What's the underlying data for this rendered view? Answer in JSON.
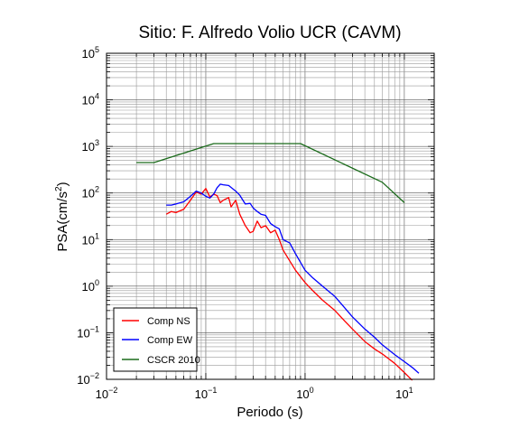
{
  "chart_data": {
    "type": "line",
    "title": "Sitio: F. Alfredo Volio UCR (CAVM)",
    "xlabel": "Periodo (s)",
    "ylabel_base": "PSA(cm/s",
    "ylabel_exp": "2",
    "ylabel_end": ")",
    "x_scale": "log",
    "y_scale": "log",
    "xlim": [
      0.01,
      20
    ],
    "ylim": [
      0.01,
      100000
    ],
    "grid": true,
    "legend_position": "bottom-left",
    "x_ticks": [
      {
        "value": 0.01,
        "base": "10",
        "exp": "−2"
      },
      {
        "value": 0.1,
        "base": "10",
        "exp": "−1"
      },
      {
        "value": 1,
        "base": "10",
        "exp": "0"
      },
      {
        "value": 10,
        "base": "10",
        "exp": "1"
      }
    ],
    "y_ticks": [
      {
        "value": 0.01,
        "base": "10",
        "exp": "−2"
      },
      {
        "value": 0.1,
        "base": "10",
        "exp": "−1"
      },
      {
        "value": 1,
        "base": "10",
        "exp": "0"
      },
      {
        "value": 10,
        "base": "10",
        "exp": "1"
      },
      {
        "value": 100,
        "base": "10",
        "exp": "2"
      },
      {
        "value": 1000,
        "base": "10",
        "exp": "3"
      },
      {
        "value": 10000,
        "base": "10",
        "exp": "4"
      },
      {
        "value": 100000,
        "base": "10",
        "exp": "5"
      }
    ],
    "series": [
      {
        "name": "Comp NS",
        "color": "#ff0000",
        "x": [
          0.04,
          0.045,
          0.05,
          0.06,
          0.07,
          0.08,
          0.09,
          0.1,
          0.11,
          0.12,
          0.13,
          0.14,
          0.15,
          0.17,
          0.18,
          0.19,
          0.2,
          0.22,
          0.25,
          0.28,
          0.3,
          0.33,
          0.36,
          0.4,
          0.45,
          0.5,
          0.55,
          0.6,
          0.7,
          0.8,
          1.0,
          1.2,
          1.5,
          2.0,
          2.5,
          3.0,
          4.0,
          5.0,
          6.0,
          8.0,
          10.0,
          12.0
        ],
        "y": [
          35,
          40,
          38,
          45,
          70,
          105,
          95,
          125,
          82,
          95,
          88,
          62,
          70,
          80,
          50,
          60,
          70,
          35,
          20,
          14,
          15,
          25,
          18,
          20,
          14,
          16,
          10,
          6,
          3.5,
          2.2,
          1.2,
          0.8,
          0.5,
          0.3,
          0.18,
          0.12,
          0.065,
          0.045,
          0.035,
          0.022,
          0.014,
          0.0095
        ]
      },
      {
        "name": "Comp EW",
        "color": "#0000ff",
        "x": [
          0.04,
          0.045,
          0.05,
          0.06,
          0.07,
          0.08,
          0.09,
          0.1,
          0.11,
          0.12,
          0.13,
          0.14,
          0.15,
          0.17,
          0.2,
          0.22,
          0.25,
          0.28,
          0.3,
          0.33,
          0.36,
          0.4,
          0.45,
          0.5,
          0.55,
          0.6,
          0.7,
          0.8,
          1.0,
          1.2,
          1.5,
          2.0,
          3.0,
          4.0,
          5.0,
          6.0,
          8.0,
          10.0,
          12.0,
          14.0
        ],
        "y": [
          55,
          55,
          58,
          65,
          85,
          110,
          100,
          85,
          78,
          95,
          130,
          155,
          150,
          145,
          110,
          90,
          58,
          60,
          48,
          40,
          35,
          33,
          22,
          19,
          17,
          10,
          8.5,
          5,
          2.2,
          1.5,
          1.0,
          0.6,
          0.22,
          0.12,
          0.08,
          0.055,
          0.034,
          0.024,
          0.018,
          0.0135
        ]
      },
      {
        "name": "CSCR 2010",
        "color": "#1b6b1b",
        "x": [
          0.02,
          0.03,
          0.12,
          0.9,
          6.0,
          10.0
        ],
        "y": [
          450,
          450,
          1150,
          1150,
          170,
          62
        ]
      }
    ]
  }
}
